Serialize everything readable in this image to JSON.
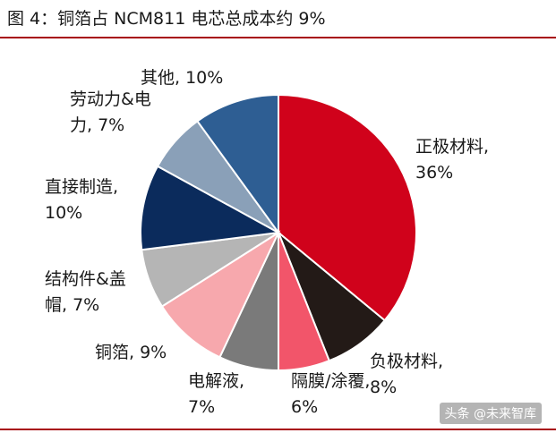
{
  "chart_data": {
    "type": "pie",
    "title": "图 4：铜箔占 NCM811 电芯总成本约 9%",
    "slices": [
      {
        "label_lines": [
          "正极材料,",
          "36%"
        ],
        "value": 36,
        "color": "#d0021b"
      },
      {
        "label_lines": [
          "负极材料,",
          "8%"
        ],
        "value": 8,
        "color": "#231a17"
      },
      {
        "label_lines": [
          "隔膜/涂覆,",
          "6%"
        ],
        "value": 6,
        "color": "#f2556a"
      },
      {
        "label_lines": [
          "电解液,",
          "7%"
        ],
        "value": 7,
        "color": "#7a7a7a"
      },
      {
        "label_lines": [
          "铜箔, 9%"
        ],
        "value": 9,
        "color": "#f7a8ad"
      },
      {
        "label_lines": [
          "结构件&盖",
          "帽, 7%"
        ],
        "value": 7,
        "color": "#b5b5b5"
      },
      {
        "label_lines": [
          "直接制造,",
          "10%"
        ],
        "value": 10,
        "color": "#0b2b5c"
      },
      {
        "label_lines": [
          "劳动力&电",
          "力, 7%"
        ],
        "value": 7,
        "color": "#8aa0b8"
      },
      {
        "label_lines": [
          "其他, 10%"
        ],
        "value": 10,
        "color": "#2e5e93"
      }
    ],
    "start": "top",
    "direction": "clockwise"
  },
  "watermark": "头条 @未来智库",
  "colors": {
    "rule": "#a8070f"
  }
}
